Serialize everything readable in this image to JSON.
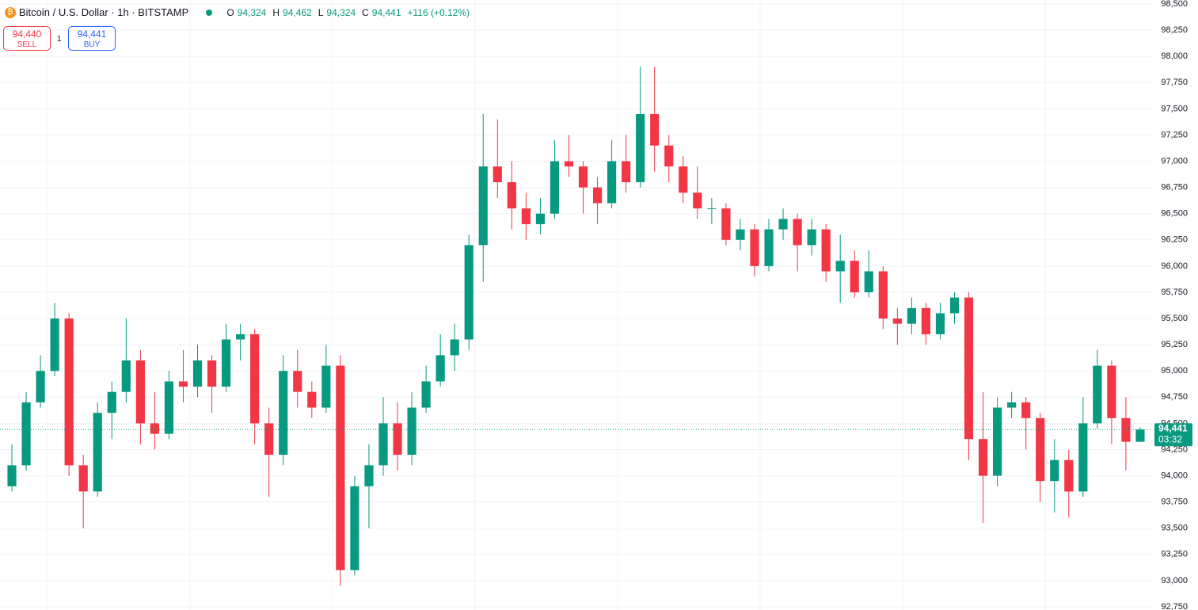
{
  "header": {
    "symbol": "Bitcoin / U.S. Dollar · 1h · BITSTAMP",
    "o_key": "O",
    "o": "94,324",
    "h_key": "H",
    "h": "94,462",
    "l_key": "L",
    "l": "94,324",
    "c_key": "C",
    "c": "94,441",
    "change": "+116 (+0.12%)"
  },
  "trade": {
    "sell_price": "94,440",
    "sell": "SELL",
    "qty": "1",
    "buy_price": "94,441",
    "buy": "BUY"
  },
  "price_tag": {
    "price": "94,441",
    "countdown": "03:32"
  },
  "chart_data": {
    "type": "candlestick",
    "up_color": "#089981",
    "down_color": "#f23645",
    "grid": true,
    "ylim": [
      92750,
      98500
    ],
    "yticks": [
      {
        "value": 92750,
        "label": "92,750"
      },
      {
        "value": 93000,
        "label": "93,000"
      },
      {
        "value": 93250,
        "label": "93,250"
      },
      {
        "value": 93500,
        "label": "93,500"
      },
      {
        "value": 93750,
        "label": "93,750"
      },
      {
        "value": 94000,
        "label": "94,000"
      },
      {
        "value": 94250,
        "label": "94,250"
      },
      {
        "value": 94500,
        "label": "94,500"
      },
      {
        "value": 94750,
        "label": "94,750"
      },
      {
        "value": 95000,
        "label": "95,000"
      },
      {
        "value": 95250,
        "label": "95,250"
      },
      {
        "value": 95500,
        "label": "95,500"
      },
      {
        "value": 95750,
        "label": "95,750"
      },
      {
        "value": 96000,
        "label": "96,000"
      },
      {
        "value": 96250,
        "label": "96,250"
      },
      {
        "value": 96500,
        "label": "96,500"
      },
      {
        "value": 96750,
        "label": "96,750"
      },
      {
        "value": 97000,
        "label": "97,000"
      },
      {
        "value": 97250,
        "label": "97,250"
      },
      {
        "value": 97500,
        "label": "97,500"
      },
      {
        "value": 97750,
        "label": "97,750"
      },
      {
        "value": 98000,
        "label": "98,000"
      },
      {
        "value": 98250,
        "label": "98,250"
      },
      {
        "value": 98500,
        "label": "98,500"
      }
    ],
    "open": [
      93900,
      94100,
      94700,
      95000,
      95500,
      94100,
      93850,
      94600,
      94800,
      95100,
      94500,
      94400,
      94900,
      94850,
      95100,
      94850,
      95300,
      95350,
      94500,
      94200,
      95000,
      94800,
      94650,
      95050,
      93100,
      93900,
      94100,
      94500,
      94200,
      94650,
      94900,
      95150,
      95300,
      96200,
      96950,
      96800,
      96550,
      96400,
      96500,
      97000,
      96950,
      96750,
      96600,
      97000,
      96800,
      97450,
      97150,
      96950,
      96700,
      96550,
      96550,
      96250,
      96350,
      96000,
      96350,
      96450,
      96200,
      96350,
      95950,
      96050,
      95750,
      95950,
      95500,
      95450,
      95600,
      95350,
      95550,
      95700,
      94350,
      94000,
      94650,
      94700,
      94550,
      93950,
      94150,
      93850,
      94500,
      95050,
      94550,
      94324
    ],
    "high": [
      94300,
      94800,
      95150,
      95650,
      95550,
      94200,
      94700,
      94900,
      95500,
      95200,
      94800,
      95000,
      95200,
      95250,
      95150,
      95450,
      95450,
      95400,
      94650,
      95150,
      95200,
      94900,
      95250,
      95150,
      94000,
      94300,
      94750,
      94700,
      94800,
      95050,
      95350,
      95450,
      96300,
      97450,
      97400,
      97000,
      96700,
      96650,
      97200,
      97250,
      97000,
      96850,
      97200,
      97250,
      97900,
      97900,
      97250,
      97050,
      96950,
      96650,
      96600,
      96450,
      96400,
      96450,
      96550,
      96500,
      96450,
      96400,
      96300,
      96150,
      96150,
      96000,
      95600,
      95700,
      95650,
      95650,
      95750,
      95750,
      94800,
      94750,
      94800,
      94750,
      94600,
      94350,
      94250,
      94750,
      95200,
      95100,
      94750,
      94462
    ],
    "low": [
      93850,
      94050,
      94650,
      94950,
      94000,
      93500,
      93800,
      94350,
      94700,
      94300,
      94250,
      94350,
      94700,
      94750,
      94600,
      94800,
      95100,
      94300,
      93800,
      94100,
      94650,
      94550,
      94600,
      92950,
      93050,
      93500,
      94000,
      94050,
      94100,
      94600,
      94850,
      95000,
      95200,
      95850,
      96650,
      96350,
      96250,
      96300,
      96450,
      96850,
      96500,
      96400,
      96550,
      96700,
      96750,
      96900,
      96800,
      96600,
      96450,
      96400,
      96200,
      96150,
      95900,
      95950,
      96250,
      95950,
      96100,
      95850,
      95650,
      95700,
      95700,
      95400,
      95250,
      95350,
      95250,
      95300,
      95450,
      94150,
      93550,
      93900,
      94550,
      94250,
      93750,
      93650,
      93600,
      93800,
      94450,
      94300,
      94050,
      94324
    ],
    "close": [
      94100,
      94700,
      95000,
      95500,
      94100,
      93850,
      94600,
      94800,
      95100,
      94500,
      94400,
      94900,
      94850,
      95100,
      94850,
      95300,
      95350,
      94500,
      94200,
      95000,
      94800,
      94650,
      95050,
      93100,
      93900,
      94100,
      94500,
      94200,
      94650,
      94900,
      95150,
      95300,
      96200,
      96950,
      96800,
      96550,
      96400,
      96500,
      97000,
      96950,
      96750,
      96600,
      97000,
      96800,
      97450,
      97150,
      96950,
      96700,
      96550,
      96550,
      96250,
      96350,
      96000,
      96350,
      96450,
      96200,
      96350,
      95950,
      96050,
      95750,
      95950,
      95500,
      95450,
      95600,
      95350,
      95550,
      95700,
      94350,
      94000,
      94650,
      94700,
      94550,
      93950,
      94150,
      93850,
      94500,
      95050,
      94550,
      94324,
      94441
    ]
  }
}
